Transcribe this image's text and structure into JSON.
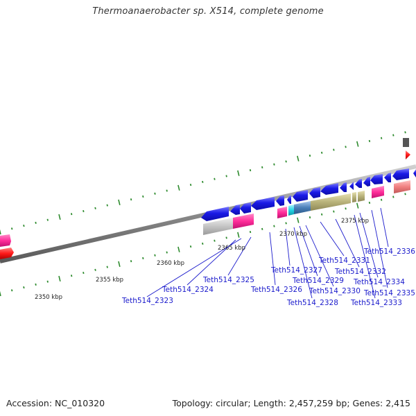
{
  "title": "Thermoanaerobacter sp. X514, complete genome",
  "accession_label": "Accession: NC_010320",
  "topology_label": "Topology: circular; Length: 2,457,259 bp; Genes: 2,415",
  "scale_labels": [
    "2350 kbp",
    "2355 kbp",
    "2360 kbp",
    "2365 kbp",
    "2370 kbp",
    "2375 kbp"
  ],
  "gene_labels": [
    "Teth514_2323",
    "Teth514_2324",
    "Teth514_2325",
    "Teth514_2326",
    "Teth514_2327",
    "Teth514_2328",
    "Teth514_2329",
    "Teth514_2330",
    "Teth514_2331",
    "Teth514_2332",
    "Teth514_2333",
    "Teth514_2334",
    "Teth514_2335",
    "Teth514_2336"
  ],
  "colors": {
    "cds": "#1a1ae6",
    "cds_light": "#6b6bff",
    "rRNA": "#ff2d9a",
    "tRNA": "#ff1a1a",
    "misc_pink": "#f08080",
    "gray": "#bdbdbd",
    "dark_gray": "#555555",
    "olive": "#b8b27a",
    "cyan": "#22d6e6",
    "steel": "#4a7fb8",
    "backbone": "#8a8a8a",
    "tick": "#2e8b2e",
    "label": "#1a1acc"
  }
}
